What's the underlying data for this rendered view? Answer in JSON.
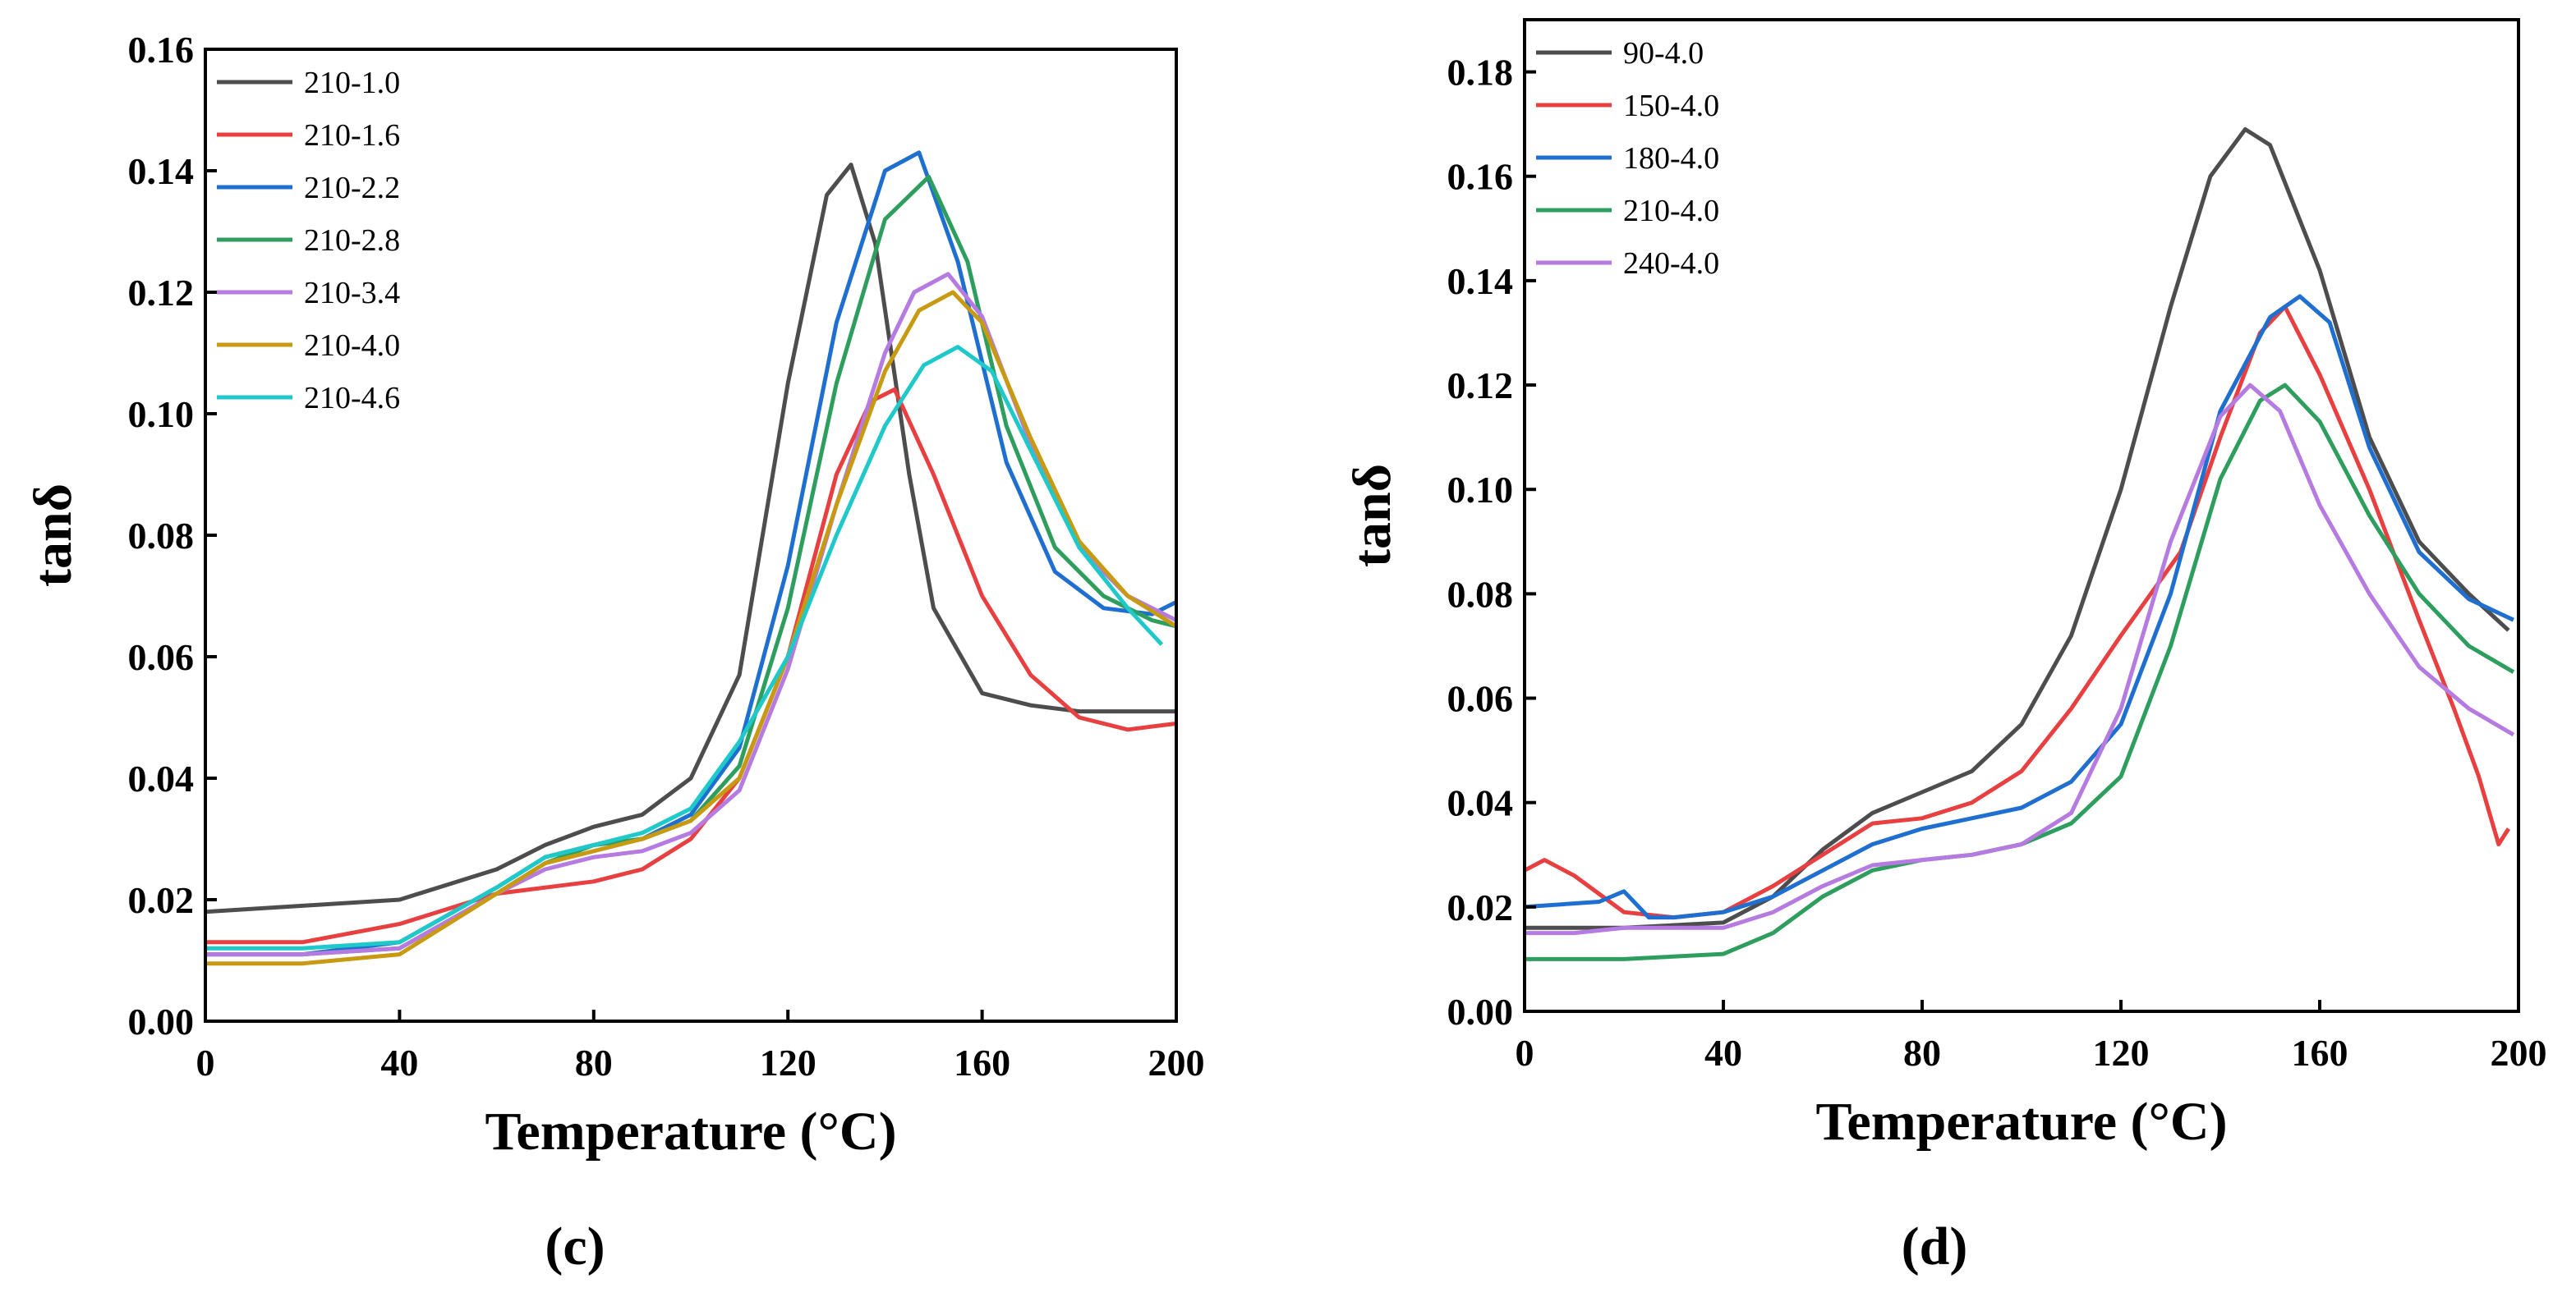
{
  "chart_data": [
    {
      "type": "line",
      "panel_label": "(c)",
      "xlabel": "Temperature (°C)",
      "ylabel": "tanδ",
      "xlim": [
        0,
        200
      ],
      "ylim": [
        0,
        0.16
      ],
      "xticks": [
        0,
        40,
        80,
        120,
        160,
        200
      ],
      "xtick_labels": [
        "0",
        "40",
        "80",
        "120",
        "160",
        "200"
      ],
      "yticks": [
        0,
        0.02,
        0.04,
        0.06,
        0.08,
        0.1,
        0.12,
        0.14,
        0.16
      ],
      "ytick_labels": [
        "0.00",
        "0.02",
        "0.04",
        "0.06",
        "0.08",
        "0.10",
        "0.12",
        "0.14",
        "0.16"
      ],
      "legend_position": "top-left",
      "series": [
        {
          "name": "210-1.0",
          "color": "#4d4d4d",
          "x": [
            0,
            20,
            40,
            60,
            70,
            80,
            90,
            100,
            110,
            120,
            128,
            133,
            138,
            145,
            150,
            160,
            170,
            180,
            190,
            200
          ],
          "y": [
            0.018,
            0.019,
            0.02,
            0.025,
            0.029,
            0.032,
            0.034,
            0.04,
            0.057,
            0.105,
            0.136,
            0.141,
            0.128,
            0.09,
            0.068,
            0.054,
            0.052,
            0.051,
            0.051,
            0.051
          ]
        },
        {
          "name": "210-1.6",
          "color": "#e84040",
          "x": [
            0,
            20,
            40,
            60,
            70,
            80,
            90,
            100,
            110,
            120,
            130,
            137,
            142,
            150,
            160,
            170,
            180,
            190,
            200
          ],
          "y": [
            0.013,
            0.013,
            0.016,
            0.021,
            0.022,
            0.023,
            0.025,
            0.03,
            0.04,
            0.06,
            0.09,
            0.102,
            0.104,
            0.09,
            0.07,
            0.057,
            0.05,
            0.048,
            0.049
          ]
        },
        {
          "name": "210-2.2",
          "color": "#1f6fd1",
          "x": [
            0,
            20,
            40,
            60,
            70,
            80,
            90,
            100,
            110,
            120,
            130,
            140,
            147,
            155,
            165,
            175,
            185,
            195,
            200
          ],
          "y": [
            0.011,
            0.011,
            0.013,
            0.022,
            0.027,
            0.029,
            0.03,
            0.034,
            0.045,
            0.075,
            0.115,
            0.14,
            0.143,
            0.125,
            0.092,
            0.074,
            0.068,
            0.067,
            0.069
          ]
        },
        {
          "name": "210-2.8",
          "color": "#2e9e5e",
          "x": [
            0,
            20,
            40,
            60,
            70,
            80,
            90,
            100,
            110,
            120,
            130,
            140,
            149,
            157,
            165,
            175,
            185,
            195,
            200
          ],
          "y": [
            0.011,
            0.011,
            0.012,
            0.021,
            0.026,
            0.029,
            0.03,
            0.033,
            0.042,
            0.068,
            0.105,
            0.132,
            0.139,
            0.125,
            0.098,
            0.078,
            0.07,
            0.066,
            0.065
          ]
        },
        {
          "name": "210-3.4",
          "color": "#b57be0",
          "x": [
            0,
            20,
            40,
            60,
            70,
            80,
            90,
            100,
            110,
            120,
            130,
            140,
            146,
            153,
            160,
            170,
            180,
            190,
            200
          ],
          "y": [
            0.011,
            0.011,
            0.012,
            0.021,
            0.025,
            0.027,
            0.028,
            0.031,
            0.038,
            0.058,
            0.085,
            0.11,
            0.12,
            0.123,
            0.116,
            0.095,
            0.078,
            0.07,
            0.066
          ]
        },
        {
          "name": "210-4.0",
          "color": "#c79a12",
          "x": [
            0,
            20,
            40,
            60,
            70,
            80,
            90,
            100,
            110,
            120,
            130,
            140,
            147,
            154,
            160,
            170,
            180,
            190,
            200
          ],
          "y": [
            0.0095,
            0.0095,
            0.011,
            0.021,
            0.026,
            0.028,
            0.03,
            0.033,
            0.04,
            0.06,
            0.085,
            0.107,
            0.117,
            0.12,
            0.115,
            0.096,
            0.079,
            0.07,
            0.065
          ]
        },
        {
          "name": "210-4.6",
          "color": "#1fc9c9",
          "x": [
            0,
            20,
            40,
            60,
            70,
            80,
            90,
            100,
            110,
            120,
            130,
            140,
            148,
            155,
            162,
            170,
            180,
            190,
            197
          ],
          "y": [
            0.012,
            0.012,
            0.013,
            0.022,
            0.027,
            0.029,
            0.031,
            0.035,
            0.046,
            0.06,
            0.08,
            0.098,
            0.108,
            0.111,
            0.107,
            0.094,
            0.078,
            0.068,
            0.062
          ]
        }
      ]
    },
    {
      "type": "line",
      "panel_label": "(d)",
      "xlabel": "Temperature (°C)",
      "ylabel": "tanδ",
      "xlim": [
        0,
        200
      ],
      "ylim": [
        0,
        0.19
      ],
      "xticks": [
        0,
        40,
        80,
        120,
        160,
        200
      ],
      "xtick_labels": [
        "0",
        "40",
        "80",
        "120",
        "160",
        "200"
      ],
      "yticks": [
        0,
        0.02,
        0.04,
        0.06,
        0.08,
        0.1,
        0.12,
        0.14,
        0.16,
        0.18
      ],
      "ytick_labels": [
        "0.00",
        "0.02",
        "0.04",
        "0.06",
        "0.08",
        "0.10",
        "0.12",
        "0.14",
        "0.16",
        "0.18"
      ],
      "legend_position": "top-left",
      "series": [
        {
          "name": "90-4.0",
          "color": "#4d4d4d",
          "x": [
            0,
            20,
            40,
            50,
            60,
            70,
            80,
            90,
            100,
            110,
            120,
            130,
            138,
            145,
            150,
            160,
            170,
            180,
            190,
            198
          ],
          "y": [
            0.016,
            0.016,
            0.017,
            0.022,
            0.031,
            0.038,
            0.042,
            0.046,
            0.055,
            0.072,
            0.1,
            0.135,
            0.16,
            0.169,
            0.166,
            0.142,
            0.11,
            0.09,
            0.08,
            0.073
          ]
        },
        {
          "name": "150-4.0",
          "color": "#e84040",
          "x": [
            0,
            4,
            10,
            20,
            30,
            40,
            50,
            60,
            70,
            80,
            90,
            100,
            110,
            120,
            126,
            132,
            140,
            148,
            153,
            160,
            170,
            180,
            187,
            192,
            196,
            198
          ],
          "y": [
            0.027,
            0.029,
            0.026,
            0.019,
            0.018,
            0.019,
            0.024,
            0.03,
            0.036,
            0.037,
            0.04,
            0.046,
            0.058,
            0.072,
            0.08,
            0.088,
            0.11,
            0.13,
            0.135,
            0.122,
            0.1,
            0.075,
            0.058,
            0.045,
            0.032,
            0.035
          ]
        },
        {
          "name": "180-4.0",
          "color": "#1f6fd1",
          "x": [
            0,
            15,
            20,
            25,
            30,
            40,
            50,
            60,
            70,
            80,
            90,
            100,
            110,
            120,
            130,
            140,
            150,
            156,
            162,
            170,
            180,
            190,
            199
          ],
          "y": [
            0.02,
            0.021,
            0.023,
            0.018,
            0.018,
            0.019,
            0.022,
            0.027,
            0.032,
            0.035,
            0.037,
            0.039,
            0.044,
            0.055,
            0.08,
            0.115,
            0.133,
            0.137,
            0.132,
            0.108,
            0.088,
            0.079,
            0.075
          ]
        },
        {
          "name": "210-4.0",
          "color": "#2e9e5e",
          "x": [
            0,
            20,
            40,
            50,
            60,
            70,
            80,
            90,
            100,
            110,
            120,
            130,
            140,
            148,
            153,
            160,
            170,
            180,
            190,
            199
          ],
          "y": [
            0.01,
            0.01,
            0.011,
            0.015,
            0.022,
            0.027,
            0.029,
            0.03,
            0.032,
            0.036,
            0.045,
            0.07,
            0.102,
            0.117,
            0.12,
            0.113,
            0.095,
            0.08,
            0.07,
            0.065
          ]
        },
        {
          "name": "240-4.0",
          "color": "#b57be0",
          "x": [
            0,
            10,
            20,
            30,
            40,
            50,
            60,
            70,
            80,
            90,
            100,
            110,
            120,
            130,
            140,
            146,
            152,
            160,
            170,
            180,
            190,
            199
          ],
          "y": [
            0.015,
            0.015,
            0.016,
            0.016,
            0.016,
            0.019,
            0.024,
            0.028,
            0.029,
            0.03,
            0.032,
            0.038,
            0.058,
            0.09,
            0.114,
            0.12,
            0.115,
            0.097,
            0.08,
            0.066,
            0.058,
            0.053
          ]
        }
      ]
    }
  ]
}
